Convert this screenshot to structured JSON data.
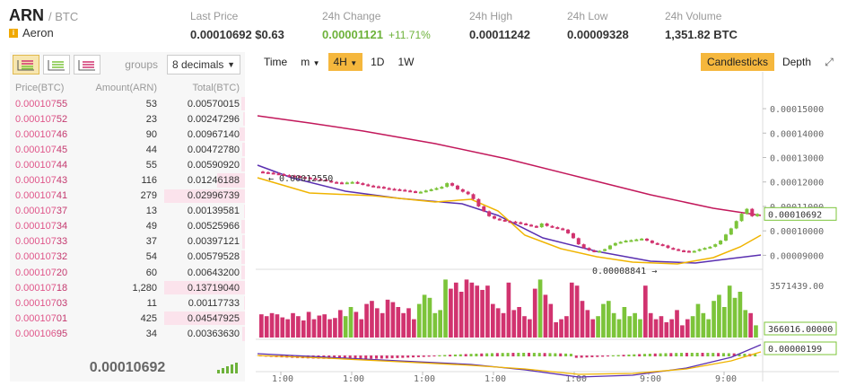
{
  "header": {
    "symbol": "ARN",
    "quote": "/ BTC",
    "coin_name": "Aeron",
    "stats": [
      {
        "label": "Last Price",
        "value": "0.00010692 $0.63"
      },
      {
        "label": "24h Change",
        "value": "0.00001121",
        "pct": "+11.71%"
      },
      {
        "label": "24h High",
        "value": "0.00011242"
      },
      {
        "label": "24h Low",
        "value": "0.00009328"
      },
      {
        "label": "24h Volume",
        "value": "1,351.82 BTC"
      }
    ]
  },
  "orderbook": {
    "groups_label": "groups",
    "decimals": "8 decimals",
    "headers": [
      "Price(BTC)",
      "Amount(ARN)",
      "Total(BTC)"
    ],
    "rows": [
      {
        "p1": "0.000107",
        "p2": "55",
        "amount": "53",
        "total": "0.00570015",
        "depth": 0.05
      },
      {
        "p1": "0.000107",
        "p2": "52",
        "amount": "23",
        "total": "0.00247296",
        "depth": 0.02
      },
      {
        "p1": "0.000107",
        "p2": "46",
        "amount": "90",
        "total": "0.00967140",
        "depth": 0.07
      },
      {
        "p1": "0.000107",
        "p2": "45",
        "amount": "44",
        "total": "0.00472780",
        "depth": 0.03
      },
      {
        "p1": "0.000107",
        "p2": "44",
        "amount": "55",
        "total": "0.00590920",
        "depth": 0.04
      },
      {
        "p1": "0.000107",
        "p2": "43",
        "amount": "116",
        "total": "0.01246188",
        "depth": 0.35
      },
      {
        "p1": "0.000107",
        "p2": "41",
        "amount": "279",
        "total": "0.02996739",
        "depth": 1.0
      },
      {
        "p1": "0.000107",
        "p2": "37",
        "amount": "13",
        "total": "0.00139581",
        "depth": 0.01
      },
      {
        "p1": "0.000107",
        "p2": "34",
        "amount": "49",
        "total": "0.00525966",
        "depth": 0.04
      },
      {
        "p1": "0.000107",
        "p2": "33",
        "amount": "37",
        "total": "0.00397121",
        "depth": 0.03
      },
      {
        "p1": "0.000107",
        "p2": "32",
        "amount": "54",
        "total": "0.00579528",
        "depth": 0.05
      },
      {
        "p1": "0.000107",
        "p2": "20",
        "amount": "60",
        "total": "0.00643200",
        "depth": 0.05
      },
      {
        "p1": "0.000107",
        "p2": "18",
        "amount": "1,280",
        "total": "0.13719040",
        "depth": 1.0
      },
      {
        "p1": "0.000107",
        "p2": "03",
        "amount": "11",
        "total": "0.00117733",
        "depth": 0.01
      },
      {
        "p1": "0.000107",
        "p2": "01",
        "amount": "425",
        "total": "0.04547925",
        "depth": 1.0
      },
      {
        "p1": "0.000106",
        "p2": "95",
        "amount": "34",
        "total": "0.00363630",
        "depth": 0.03
      }
    ],
    "last_price": "0.00010692"
  },
  "chart": {
    "toolbar": {
      "time": "Time",
      "minutes": "m",
      "interval": "4H",
      "d1": "1D",
      "w1": "1W",
      "candlesticks": "Candlesticks",
      "depth": "Depth"
    },
    "colors": {
      "up": "#7cc43a",
      "down": "#d1336f",
      "ma_short": "#f0b400",
      "ma_mid": "#5a2fb0",
      "ma_long": "#c2185b"
    }
  },
  "chart_data": {
    "type": "candlestick",
    "price_axis": {
      "ticks": [
        "0.00015000",
        "0.00014000",
        "0.00013000",
        "0.00012000",
        "0.00011000",
        "0.00010000",
        "0.00009000"
      ],
      "range": [
        8.5e-05,
        0.000157
      ]
    },
    "time_axis": {
      "ticks": [
        "1:00",
        "1:00",
        "1:00",
        "1:00",
        "1:00",
        "9:00",
        "9:00"
      ]
    },
    "annotations": {
      "high_label": "0.00012550",
      "low_label": "0.00008841",
      "last_price": "0.00010692",
      "volume_max": "3571439.00",
      "volume_last": "366016.00000",
      "macd_last": "0.00000199"
    },
    "closes": [
      0.000124,
      0.0001238,
      0.0001235,
      0.0001232,
      0.0001228,
      0.0001226,
      0.0001224,
      0.000122,
      0.0001218,
      0.0001215,
      0.0001212,
      0.000121,
      0.0001205,
      0.00012,
      0.0001198,
      0.0001196,
      0.0001198,
      0.00012,
      0.0001195,
      0.000119,
      0.0001185,
      0.0001182,
      0.000118,
      0.0001175,
      0.0001172,
      0.000117,
      0.0001168,
      0.0001165,
      0.0001162,
      0.0001158,
      0.000116,
      0.0001165,
      0.000117,
      0.0001175,
      0.000118,
      0.0001195,
      0.0001185,
      0.000117,
      0.000116,
      0.000115,
      0.000113,
      0.00011,
      0.000108,
      0.000106,
      0.000105,
      0.0001045,
      0.000104,
      0.0001038,
      0.0001035,
      0.000103,
      0.0001025,
      0.000102,
      0.0001015,
      0.000103,
      0.000102,
      0.0001015,
      0.000101,
      0.0001005,
      9.9e-05,
      9.7e-05,
      9.45e-05,
      9.3e-05,
      9.2e-05,
      9.15e-05,
      9.18e-05,
      9.25e-05,
      9.4e-05,
      9.5e-05,
      9.55e-05,
      9.6e-05,
      9.62e-05,
      9.65e-05,
      9.68e-05,
      9.6e-05,
      9.5e-05,
      9.45e-05,
      9.4e-05,
      9.3e-05,
      9.25e-05,
      9.2e-05,
      9.18e-05,
      9.16e-05,
      9.18e-05,
      9.25e-05,
      9.3e-05,
      9.35e-05,
      9.45e-05,
      9.6e-05,
      9.85e-05,
      0.000101,
      0.000104,
      0.000107,
      0.000109,
      0.000106,
      0.0001069
    ],
    "volumes": [
      0.38,
      0.35,
      0.4,
      0.38,
      0.33,
      0.3,
      0.4,
      0.35,
      0.28,
      0.42,
      0.3,
      0.36,
      0.38,
      0.3,
      0.32,
      0.45,
      0.35,
      0.5,
      0.42,
      0.3,
      0.55,
      0.6,
      0.48,
      0.4,
      0.62,
      0.58,
      0.5,
      0.4,
      0.48,
      0.3,
      0.55,
      0.7,
      0.65,
      0.4,
      0.45,
      0.95,
      0.8,
      0.9,
      0.75,
      0.95,
      0.9,
      0.85,
      0.78,
      0.85,
      0.55,
      0.48,
      0.4,
      0.9,
      0.45,
      0.5,
      0.35,
      0.3,
      0.8,
      0.95,
      0.7,
      0.55,
      0.25,
      0.3,
      0.35,
      0.9,
      0.85,
      0.6,
      0.45,
      0.3,
      0.35,
      0.55,
      0.6,
      0.4,
      0.3,
      0.5,
      0.35,
      0.4,
      0.3,
      0.85,
      0.4,
      0.3,
      0.35,
      0.25,
      0.3,
      0.45,
      0.2,
      0.3,
      0.35,
      0.55,
      0.4,
      0.3,
      0.6,
      0.7,
      0.5,
      0.85,
      0.65,
      0.75,
      0.45,
      0.4,
      0.2
    ]
  }
}
